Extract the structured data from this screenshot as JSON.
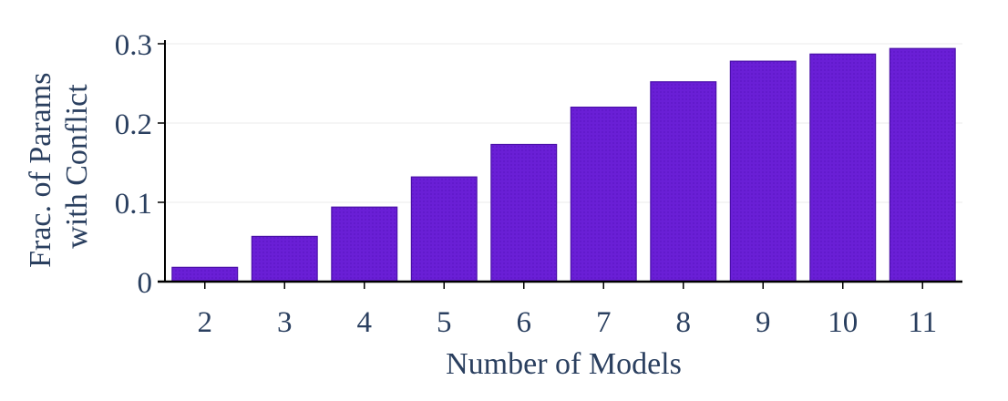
{
  "chart_data": {
    "type": "bar",
    "title": "",
    "xlabel": "Number of Models",
    "ylabel_lines": [
      "Frac. of Params",
      "with Conflict"
    ],
    "categories": [
      "2",
      "3",
      "4",
      "5",
      "6",
      "7",
      "8",
      "9",
      "10",
      "11"
    ],
    "values": [
      0.018,
      0.057,
      0.094,
      0.132,
      0.173,
      0.22,
      0.252,
      0.278,
      0.287,
      0.294
    ],
    "ylim": [
      0,
      0.3
    ],
    "yticks": [
      0,
      0.1,
      0.2,
      0.3
    ],
    "ytick_labels": [
      "0",
      "0.1",
      "0.2",
      "0.3"
    ],
    "grid": true,
    "legend": "none",
    "bar_color": "#6a1fd6",
    "bar_edge_color": "#4a10a8",
    "text_color": "#2a3f5f",
    "grid_color": "#ebebeb"
  }
}
